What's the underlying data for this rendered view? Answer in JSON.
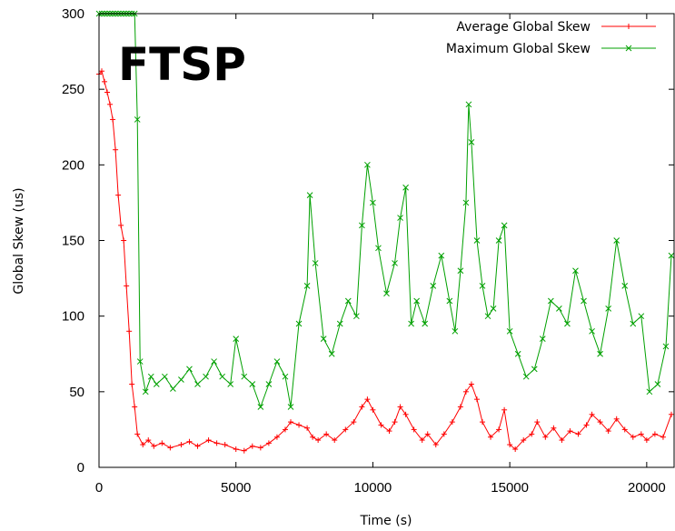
{
  "chart_data": {
    "type": "line",
    "title": "FTSP",
    "xlabel": "Time (s)",
    "ylabel": "Global Skew (us)",
    "xlim": [
      0,
      21000
    ],
    "ylim": [
      0,
      300
    ],
    "x_ticks": [
      "0",
      "5000",
      "10000",
      "15000",
      "20000"
    ],
    "y_ticks": [
      "0",
      "50",
      "100",
      "150",
      "200",
      "250",
      "300"
    ],
    "grid": false,
    "legend_position": "top-right",
    "series": [
      {
        "name": "Average Global Skew",
        "color": "#ff0000",
        "marker": "plus",
        "x": [
          0,
          100,
          200,
          300,
          400,
          500,
          600,
          700,
          800,
          900,
          1000,
          1100,
          1200,
          1300,
          1400,
          1600,
          1800,
          2000,
          2300,
          2600,
          3000,
          3300,
          3600,
          4000,
          4300,
          4600,
          5000,
          5300,
          5600,
          5900,
          6200,
          6500,
          6800,
          7000,
          7300,
          7600,
          7800,
          8000,
          8300,
          8600,
          9000,
          9300,
          9600,
          9800,
          10000,
          10300,
          10600,
          10800,
          11000,
          11200,
          11500,
          11800,
          12000,
          12300,
          12600,
          12900,
          13200,
          13400,
          13600,
          13800,
          14000,
          14300,
          14600,
          14800,
          15000,
          15200,
          15500,
          15800,
          16000,
          16300,
          16600,
          16900,
          17200,
          17500,
          17800,
          18000,
          18300,
          18600,
          18900,
          19200,
          19500,
          19800,
          20000,
          20300,
          20600,
          20900
        ],
        "y": [
          260,
          262,
          255,
          248,
          240,
          230,
          210,
          180,
          160,
          150,
          120,
          90,
          55,
          40,
          22,
          15,
          18,
          14,
          16,
          13,
          15,
          17,
          14,
          18,
          16,
          15,
          12,
          11,
          14,
          13,
          16,
          20,
          25,
          30,
          28,
          26,
          20,
          18,
          22,
          18,
          25,
          30,
          40,
          45,
          38,
          28,
          24,
          30,
          40,
          35,
          25,
          18,
          22,
          15,
          22,
          30,
          40,
          50,
          55,
          45,
          30,
          20,
          25,
          38,
          15,
          12,
          18,
          22,
          30,
          20,
          26,
          18,
          24,
          22,
          28,
          35,
          30,
          24,
          32,
          25,
          20,
          22,
          18,
          22,
          20,
          35
        ]
      },
      {
        "name": "Maximum Global Skew",
        "color": "#00a000",
        "marker": "cross",
        "x": [
          0,
          100,
          200,
          300,
          400,
          500,
          600,
          700,
          800,
          900,
          1000,
          1100,
          1200,
          1300,
          1400,
          1500,
          1700,
          1900,
          2100,
          2400,
          2700,
          3000,
          3300,
          3600,
          3900,
          4200,
          4500,
          4800,
          5000,
          5300,
          5600,
          5900,
          6200,
          6500,
          6800,
          7000,
          7300,
          7600,
          7700,
          7900,
          8200,
          8500,
          8800,
          9100,
          9400,
          9600,
          9800,
          10000,
          10200,
          10500,
          10800,
          11000,
          11200,
          11400,
          11600,
          11900,
          12200,
          12500,
          12800,
          13000,
          13200,
          13400,
          13500,
          13600,
          13800,
          14000,
          14200,
          14400,
          14600,
          14800,
          15000,
          15300,
          15600,
          15900,
          16200,
          16500,
          16800,
          17100,
          17400,
          17700,
          18000,
          18300,
          18600,
          18900,
          19200,
          19500,
          19800,
          20100,
          20400,
          20700,
          20900
        ],
        "y": [
          300,
          300,
          300,
          300,
          300,
          300,
          300,
          300,
          300,
          300,
          300,
          300,
          300,
          300,
          230,
          70,
          50,
          60,
          55,
          60,
          52,
          58,
          65,
          55,
          60,
          70,
          60,
          55,
          85,
          60,
          55,
          40,
          55,
          70,
          60,
          40,
          95,
          120,
          180,
          135,
          85,
          75,
          95,
          110,
          100,
          160,
          200,
          175,
          145,
          115,
          135,
          165,
          185,
          95,
          110,
          95,
          120,
          140,
          110,
          90,
          130,
          175,
          240,
          215,
          150,
          120,
          100,
          105,
          150,
          160,
          90,
          75,
          60,
          65,
          85,
          110,
          105,
          95,
          130,
          110,
          90,
          75,
          105,
          150,
          120,
          95,
          100,
          50,
          55,
          80,
          140
        ]
      }
    ]
  }
}
